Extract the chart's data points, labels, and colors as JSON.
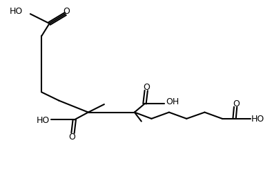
{
  "background": "#ffffff",
  "line_color": "#000000",
  "lw": 1.5,
  "fs": 9
}
